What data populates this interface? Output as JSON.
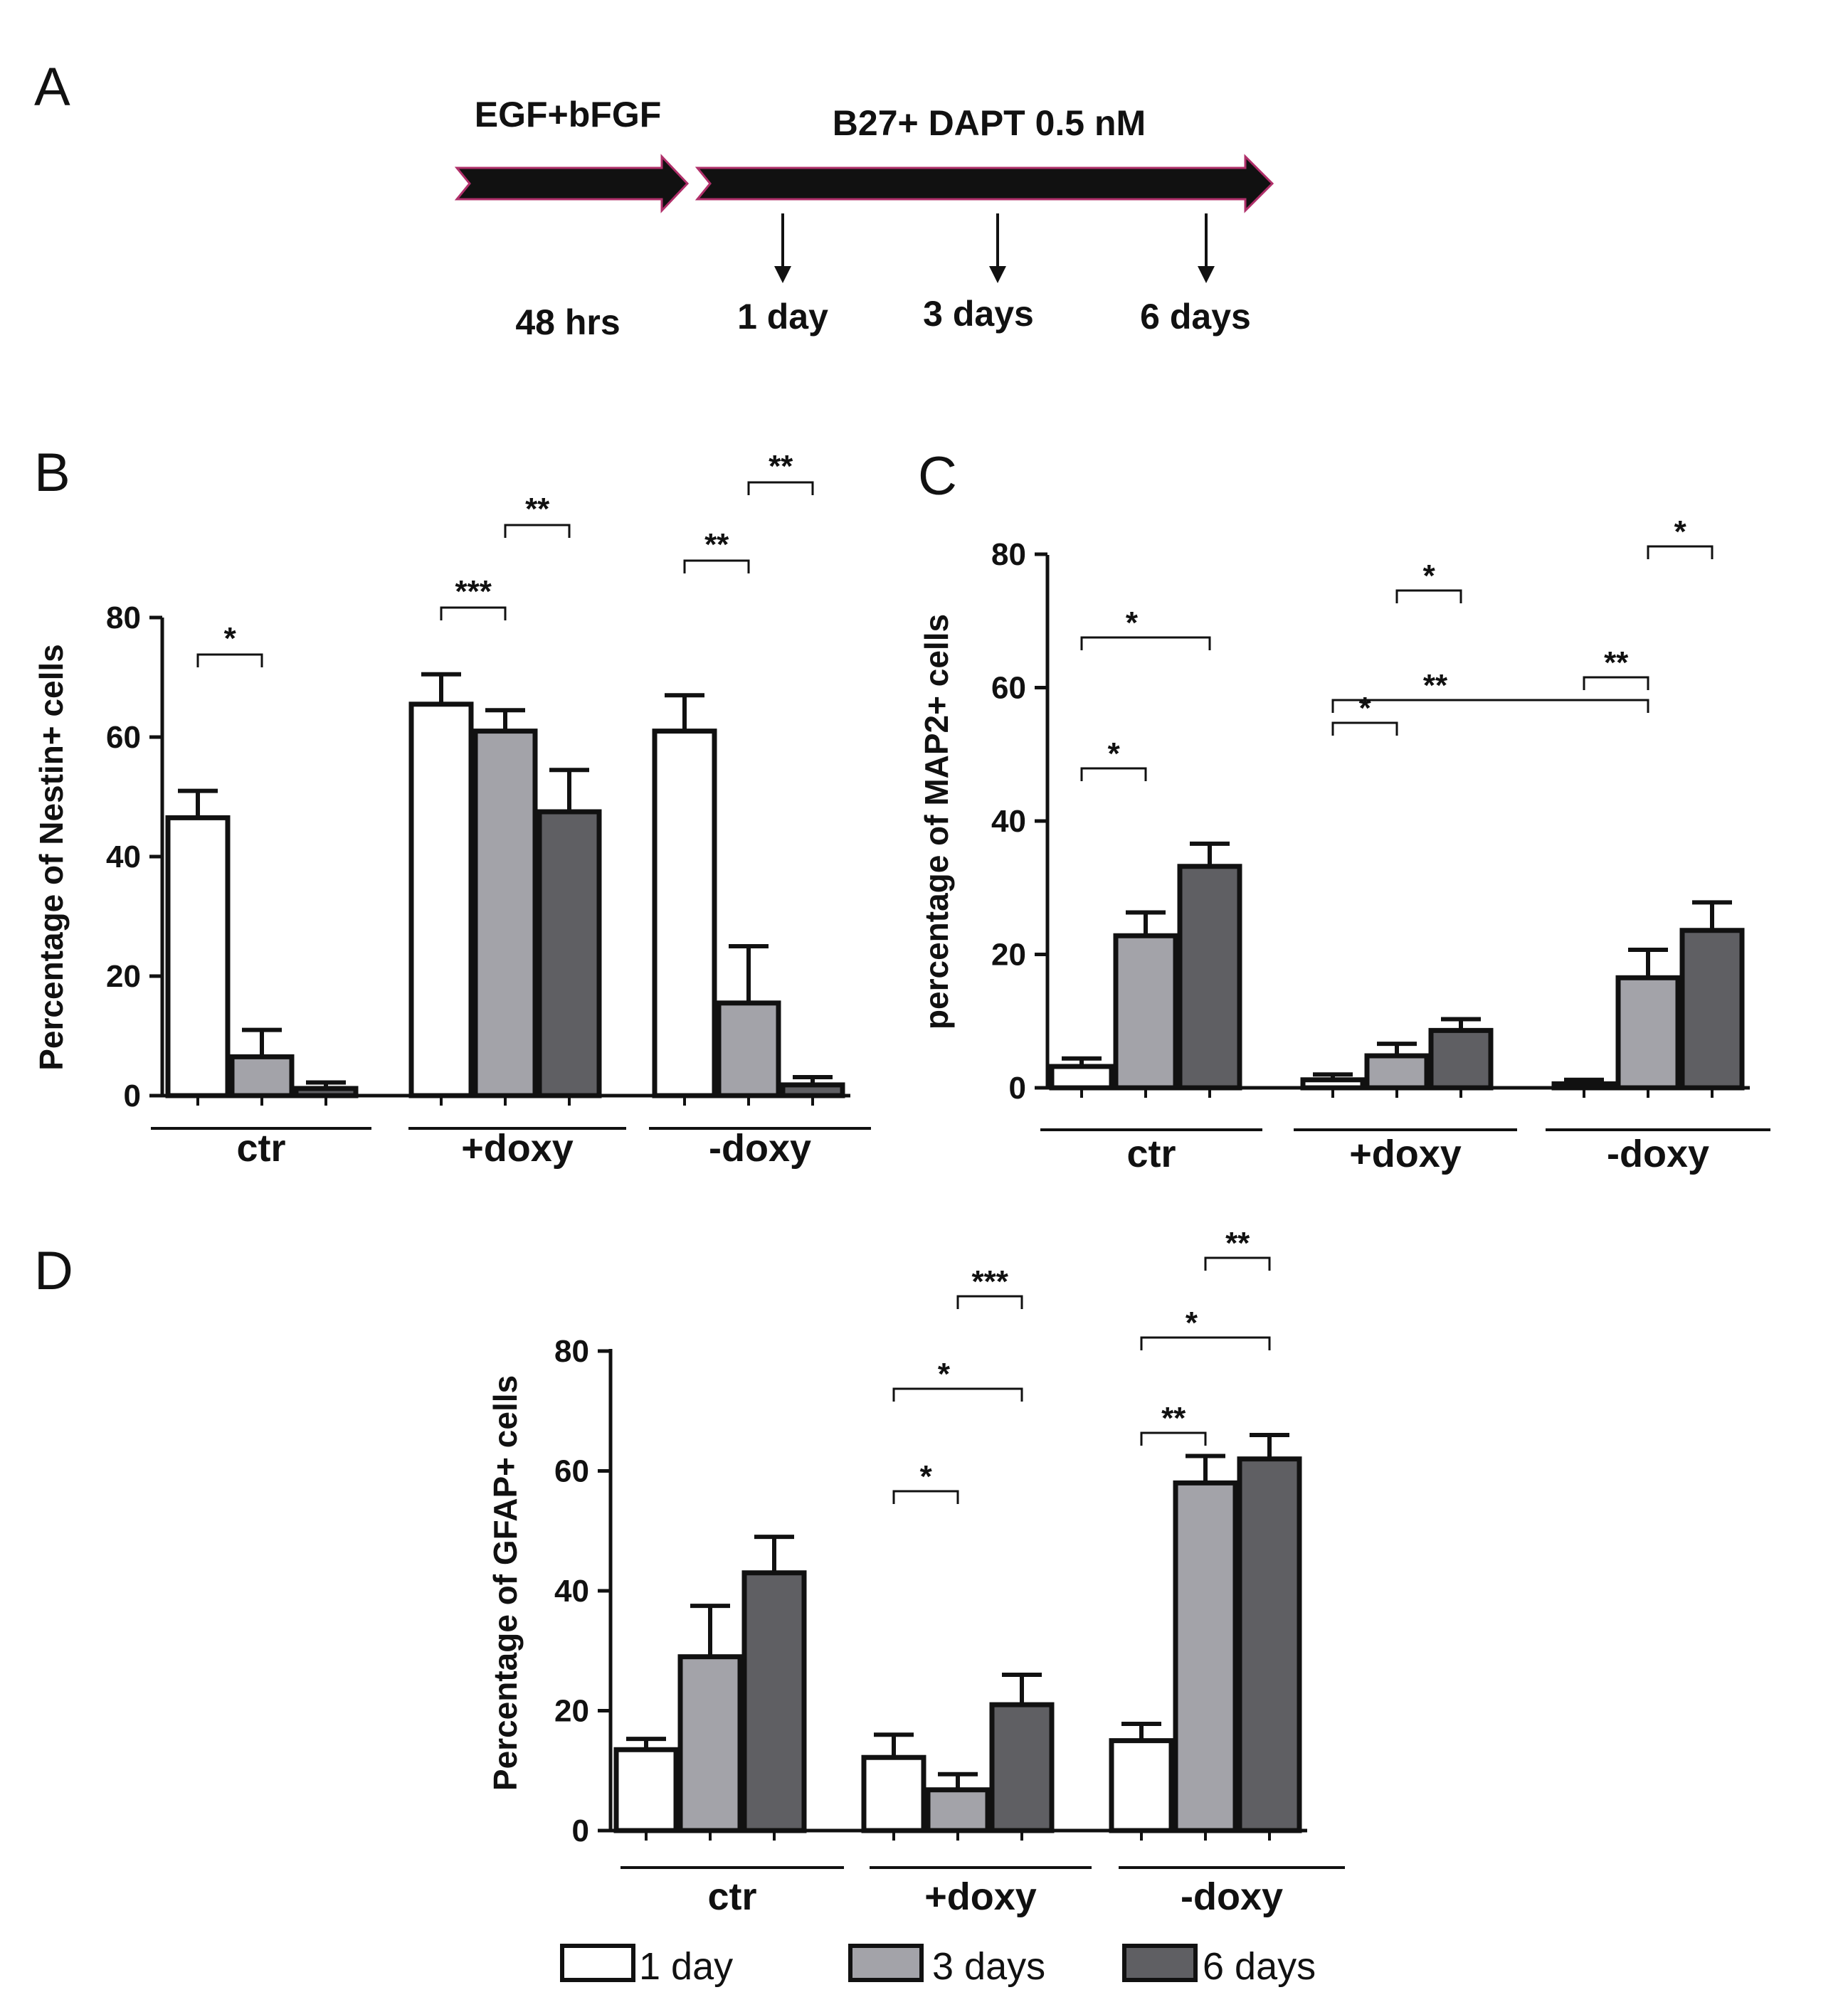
{
  "panel_a": {
    "letter": "A",
    "stage1_label": "EGF+bFGF",
    "stage1_duration": "48 hrs",
    "stage2_label": "B27+ DAPT 0.5 nM",
    "timepoints": [
      "1 day",
      "3 days",
      "6 days"
    ]
  },
  "colors": {
    "s1": "#ffffff",
    "s2": "#a3a3a9",
    "s3": "#5f5f63",
    "arrow": "#111111",
    "arrow_edge": "#b0306a"
  },
  "legend": [
    {
      "label": "1 day",
      "color": "#ffffff"
    },
    {
      "label": "3 days",
      "color": "#a3a3a9"
    },
    {
      "label": "6 days",
      "color": "#5f5f63"
    }
  ],
  "chart_data": [
    {
      "id": "B",
      "letter": "B",
      "type": "bar",
      "ylabel": "Percentage of Nestin+ cells",
      "ylim": [
        0,
        80
      ],
      "yticks": [
        0,
        20,
        40,
        60,
        80
      ],
      "groups": [
        "ctr",
        "+doxy",
        "-doxy"
      ],
      "series": [
        {
          "name": "1 day",
          "values": [
            46.5,
            65.5,
            61
          ],
          "errors": [
            4.5,
            5,
            6
          ]
        },
        {
          "name": "3 days",
          "values": [
            6.5,
            61,
            15.5
          ],
          "errors": [
            4.5,
            3.5,
            9.5
          ]
        },
        {
          "name": "6 days",
          "values": [
            1.2,
            47.5,
            1.8
          ],
          "errors": [
            1,
            7,
            1.3
          ]
        }
      ],
      "significance": [
        {
          "from": [
            0,
            0
          ],
          "to": [
            1,
            0
          ],
          "label": "*"
        },
        {
          "from": [
            0,
            1
          ],
          "to": [
            1,
            1
          ],
          "label": "***"
        },
        {
          "from": [
            0,
            2
          ],
          "to": [
            1,
            2
          ],
          "label": "**"
        },
        {
          "from": [
            1,
            1
          ],
          "to": [
            2,
            1
          ],
          "label": "**"
        },
        {
          "from": [
            1,
            2
          ],
          "to": [
            2,
            2
          ],
          "label": "**"
        }
      ]
    },
    {
      "id": "C",
      "letter": "C",
      "type": "bar",
      "ylabel": "percentage of MAP2+ cells",
      "ylim": [
        0,
        80
      ],
      "yticks": [
        0,
        20,
        40,
        60,
        80
      ],
      "groups": [
        "ctr",
        "+doxy",
        "-doxy"
      ],
      "series": [
        {
          "name": "1 day",
          "values": [
            3.2,
            1.2,
            0.6
          ],
          "errors": [
            1.2,
            0.8,
            0.6
          ]
        },
        {
          "name": "3 days",
          "values": [
            22.8,
            4.8,
            16.5
          ],
          "errors": [
            3.5,
            1.8,
            4.2
          ]
        },
        {
          "name": "6 days",
          "values": [
            33.2,
            8.6,
            23.6
          ],
          "errors": [
            3.4,
            1.7,
            4.2
          ]
        }
      ],
      "significance": [
        {
          "from": [
            0,
            0
          ],
          "to": [
            1,
            0
          ],
          "label": "*"
        },
        {
          "from": [
            0,
            1
          ],
          "to": [
            1,
            1
          ],
          "label": "*"
        },
        {
          "from": [
            0,
            1
          ],
          "to": [
            1,
            2
          ],
          "label": "**"
        },
        {
          "from": [
            0,
            2
          ],
          "to": [
            1,
            2
          ],
          "label": "**"
        },
        {
          "from": [
            0,
            0
          ],
          "to": [
            2,
            0
          ],
          "label": "*"
        },
        {
          "from": [
            1,
            1
          ],
          "to": [
            2,
            1
          ],
          "label": "*"
        },
        {
          "from": [
            1,
            2
          ],
          "to": [
            2,
            2
          ],
          "label": "*"
        }
      ]
    },
    {
      "id": "D",
      "letter": "D",
      "type": "bar",
      "ylabel": "Percentage of GFAP+ cells",
      "ylim": [
        0,
        80
      ],
      "yticks": [
        0,
        20,
        40,
        60,
        80
      ],
      "groups": [
        "ctr",
        "+doxy",
        "-doxy"
      ],
      "series": [
        {
          "name": "1 day",
          "values": [
            13.5,
            12.2,
            15
          ],
          "errors": [
            1.8,
            3.8,
            2.8
          ]
        },
        {
          "name": "3 days",
          "values": [
            29,
            6.8,
            58
          ],
          "errors": [
            8.5,
            2.6,
            4.5
          ]
        },
        {
          "name": "6 days",
          "values": [
            43,
            21,
            62
          ],
          "errors": [
            6,
            5,
            4
          ]
        }
      ],
      "significance": [
        {
          "from": [
            0,
            1
          ],
          "to": [
            1,
            1
          ],
          "label": "*"
        },
        {
          "from": [
            0,
            2
          ],
          "to": [
            1,
            2
          ],
          "label": "**"
        },
        {
          "from": [
            0,
            1
          ],
          "to": [
            2,
            1
          ],
          "label": "*"
        },
        {
          "from": [
            0,
            2
          ],
          "to": [
            2,
            2
          ],
          "label": "*"
        },
        {
          "from": [
            1,
            1
          ],
          "to": [
            2,
            1
          ],
          "label": "***"
        },
        {
          "from": [
            1,
            2
          ],
          "to": [
            2,
            2
          ],
          "label": "**"
        }
      ]
    }
  ]
}
